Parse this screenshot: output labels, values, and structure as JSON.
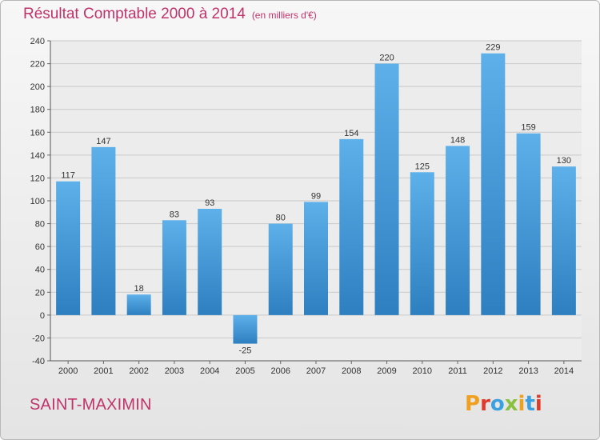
{
  "header": {
    "title": "Résultat Comptable 2000 à 2014",
    "subtitle": "(en milliers d'€)"
  },
  "footer": {
    "commune": "SAINT-MAXIMIN",
    "brand": "Proxiti"
  },
  "colors": {
    "title": "#c0336a",
    "bar_top": "#5eb0ea",
    "bar_bottom": "#2d7fc0",
    "grid": "#c9c9c9",
    "brand_letters": [
      "#f0a020",
      "#e03a2a",
      "#3aa0e0",
      "#8ac040",
      "#f0a020",
      "#3aa0e0",
      "#e03a2a"
    ]
  },
  "chart_data": {
    "type": "bar",
    "categories": [
      "2000",
      "2001",
      "2002",
      "2003",
      "2004",
      "2005",
      "2006",
      "2007",
      "2008",
      "2009",
      "2010",
      "2011",
      "2012",
      "2013",
      "2014"
    ],
    "values": [
      117,
      147,
      18,
      83,
      93,
      -25,
      80,
      99,
      154,
      220,
      125,
      148,
      229,
      159,
      130
    ],
    "ylim": [
      -40,
      240
    ],
    "yticks": [
      -40,
      -20,
      0,
      20,
      40,
      60,
      80,
      100,
      120,
      140,
      160,
      180,
      200,
      220,
      240
    ],
    "grid": true
  }
}
